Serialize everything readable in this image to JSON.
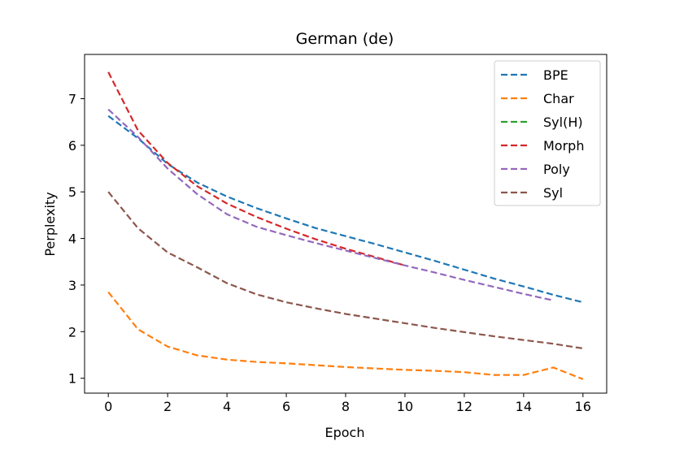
{
  "chart_data": {
    "type": "line",
    "title": "German (de)",
    "xlabel": "Epoch",
    "ylabel": "Perplexity",
    "xlim": [
      -0.8,
      16.8
    ],
    "ylim": [
      0.68,
      7.95
    ],
    "xticks": [
      0,
      2,
      4,
      6,
      8,
      10,
      12,
      14,
      16
    ],
    "yticks": [
      1,
      2,
      3,
      4,
      5,
      6,
      7
    ],
    "grid": false,
    "legend_position": "top-right",
    "line_style": "dashed",
    "series": [
      {
        "name": "BPE",
        "color": "#1f77b4",
        "x": [
          0,
          1,
          2,
          3,
          4,
          5,
          6,
          7,
          8,
          9,
          10,
          11,
          12,
          13,
          14,
          15,
          16
        ],
        "values": [
          6.63,
          6.15,
          5.6,
          5.2,
          4.9,
          4.65,
          4.43,
          4.22,
          4.05,
          3.88,
          3.7,
          3.52,
          3.33,
          3.14,
          2.97,
          2.79,
          2.63
        ]
      },
      {
        "name": "Char",
        "color": "#ff7f0e",
        "x": [
          0,
          1,
          2,
          3,
          4,
          5,
          6,
          7,
          8,
          9,
          10,
          11,
          12,
          13,
          14,
          15,
          16
        ],
        "values": [
          2.85,
          2.05,
          1.68,
          1.49,
          1.4,
          1.35,
          1.32,
          1.28,
          1.24,
          1.21,
          1.18,
          1.16,
          1.13,
          1.07,
          1.07,
          1.23,
          0.98
        ]
      },
      {
        "name": "Syl(H)",
        "color": "#2ca02c",
        "x": [],
        "values": []
      },
      {
        "name": "Morph",
        "color": "#d62728",
        "x": [
          0,
          1,
          2,
          3,
          4,
          5,
          6,
          7,
          8,
          9,
          10
        ],
        "values": [
          7.57,
          6.32,
          5.62,
          5.12,
          4.75,
          4.46,
          4.21,
          3.98,
          3.78,
          3.6,
          3.42
        ]
      },
      {
        "name": "Poly",
        "color": "#9467bd",
        "x": [
          0,
          1,
          2,
          3,
          4,
          5,
          6,
          7,
          8,
          9,
          10,
          11,
          12,
          13,
          14,
          15
        ],
        "values": [
          6.77,
          6.18,
          5.5,
          4.95,
          4.52,
          4.25,
          4.07,
          3.9,
          3.74,
          3.58,
          3.42,
          3.27,
          3.11,
          2.96,
          2.81,
          2.67
        ]
      },
      {
        "name": "Syl",
        "color": "#8c564b",
        "x": [
          0,
          1,
          2,
          3,
          4,
          5,
          6,
          7,
          8,
          9,
          10,
          11,
          12,
          13,
          14,
          15,
          16
        ],
        "values": [
          5.0,
          4.22,
          3.7,
          3.38,
          3.04,
          2.8,
          2.63,
          2.5,
          2.38,
          2.28,
          2.18,
          2.08,
          1.99,
          1.9,
          1.82,
          1.74,
          1.64
        ]
      }
    ]
  }
}
